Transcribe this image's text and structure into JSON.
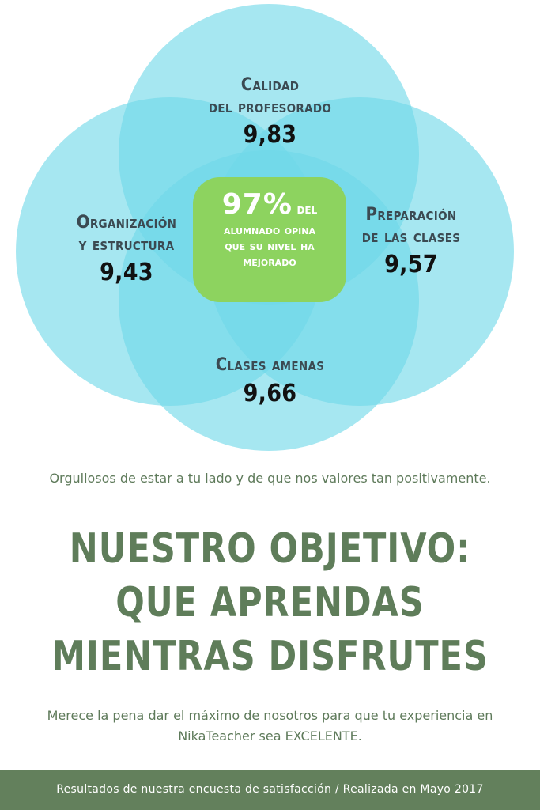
{
  "venn": {
    "center": {
      "percent": "97%",
      "percent_tail": "del",
      "lines": [
        "alumnado opina",
        "que su nivel ha",
        "mejorado"
      ]
    },
    "top": {
      "title_lines": [
        "Calidad",
        "del profesorado"
      ],
      "score": "9,83"
    },
    "left": {
      "title_lines": [
        "Organización",
        "y estructura"
      ],
      "score": "9,43"
    },
    "right": {
      "title_lines": [
        "Preparación",
        "de las clases"
      ],
      "score": "9,57"
    },
    "bottom": {
      "title_lines": [
        "Clases amenas"
      ],
      "score": "9,66"
    }
  },
  "colors": {
    "circle": "#6fd8e8",
    "center": "#8dd35f",
    "headline": "#5f7d5a",
    "footer_bg": "#63805c"
  },
  "intro": "Orgullosos de estar a tu lado y de que nos valores tan positivamente.",
  "headline": [
    "NUESTRO OBJETIVO:",
    "QUE APRENDAS",
    "MIENTRAS DISFRUTES"
  ],
  "outro": "Merece la pena dar el máximo de nosotros para que tu experiencia en NikaTeacher sea EXCELENTE.",
  "footer": "Resultados de nuestra encuesta de satisfacción / Realizada en Mayo 2017"
}
